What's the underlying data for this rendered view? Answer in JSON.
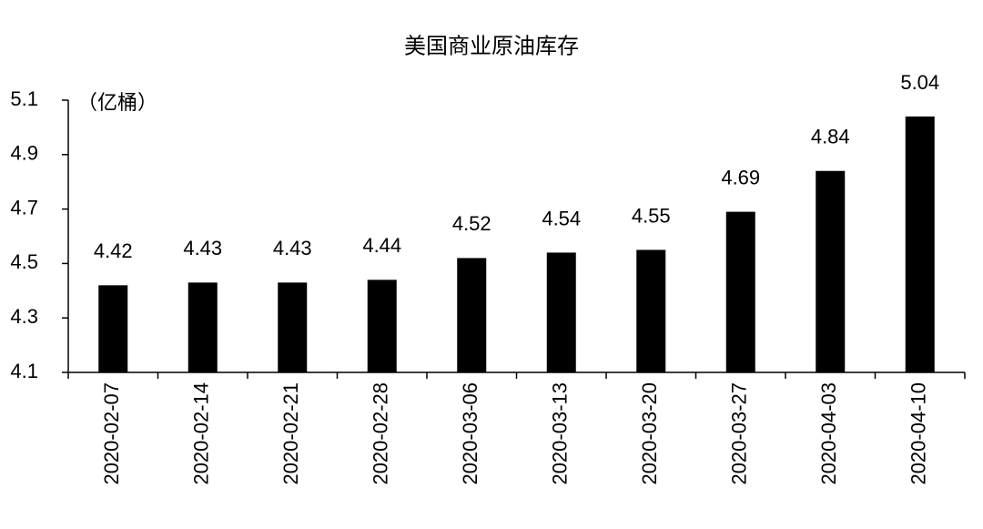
{
  "chart_data": {
    "type": "bar",
    "title": "美国商业原油库存",
    "annotation": "（亿桶）",
    "categories": [
      "2020-02-07",
      "2020-02-14",
      "2020-02-21",
      "2020-02-28",
      "2020-03-06",
      "2020-03-13",
      "2020-03-20",
      "2020-03-27",
      "2020-04-03",
      "2020-04-10"
    ],
    "values": [
      4.42,
      4.43,
      4.43,
      4.44,
      4.52,
      4.54,
      4.55,
      4.69,
      4.84,
      5.04
    ],
    "color": "#000000",
    "ylim": [
      4.1,
      5.1
    ],
    "yticks": [
      4.1,
      4.3,
      4.5,
      4.7,
      4.9,
      5.1
    ],
    "grid": false
  }
}
